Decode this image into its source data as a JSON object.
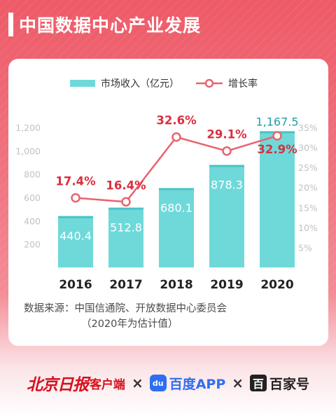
{
  "title": "中国数据中心产业发展",
  "source": {
    "line1": "数据来源：中国信通院、开放数据中心委员会",
    "line2": "（2020年为估计值）"
  },
  "footer": {
    "bj_logo": "北京日报",
    "bj_client": "客户端",
    "times": "×",
    "baidu_icon": "du",
    "baidu_label": "百度APP",
    "baijia_icon": "百",
    "baijia_label": "百家号"
  },
  "colors": {
    "bar": "#6fd9da",
    "bar_top": "#49c3c5",
    "line": "#e8636f",
    "marker_fill": "#ffffff",
    "value_text_bar": "#ffffff",
    "value_text_line": "#d8303f",
    "axis_text": "#c2c2c2",
    "year_text": "#222222"
  },
  "chart_data": {
    "type": "bar",
    "categories": [
      "2016",
      "2017",
      "2018",
      "2019",
      "2020"
    ],
    "series": [
      {
        "name": "市场收入（亿元）",
        "type": "bar",
        "axis": "left",
        "values": [
          440.4,
          512.8,
          680.1,
          878.3,
          1167.5
        ],
        "labels": [
          "440.4",
          "512.8",
          "680.1",
          "878.3",
          "1,167.5"
        ]
      },
      {
        "name": "增长率",
        "type": "line",
        "axis": "right",
        "values": [
          17.4,
          16.4,
          32.6,
          29.1,
          32.9
        ],
        "labels": [
          "17.4%",
          "16.4%",
          "32.6%",
          "29.1%",
          "32.9%"
        ]
      }
    ],
    "y_left": {
      "ticks": [
        200,
        400,
        600,
        800,
        1000,
        1200
      ],
      "tick_labels": [
        "200",
        "400",
        "600",
        "800",
        "1,000",
        "1,200"
      ],
      "range": [
        0,
        1320
      ]
    },
    "y_right": {
      "ticks": [
        5,
        10,
        15,
        20,
        25,
        30,
        35
      ],
      "tick_labels": [
        "5%",
        "10%",
        "15%",
        "20%",
        "25%",
        "30%",
        "35%"
      ],
      "range": [
        0,
        38.5
      ]
    },
    "legend_position": "top",
    "grid": false
  }
}
